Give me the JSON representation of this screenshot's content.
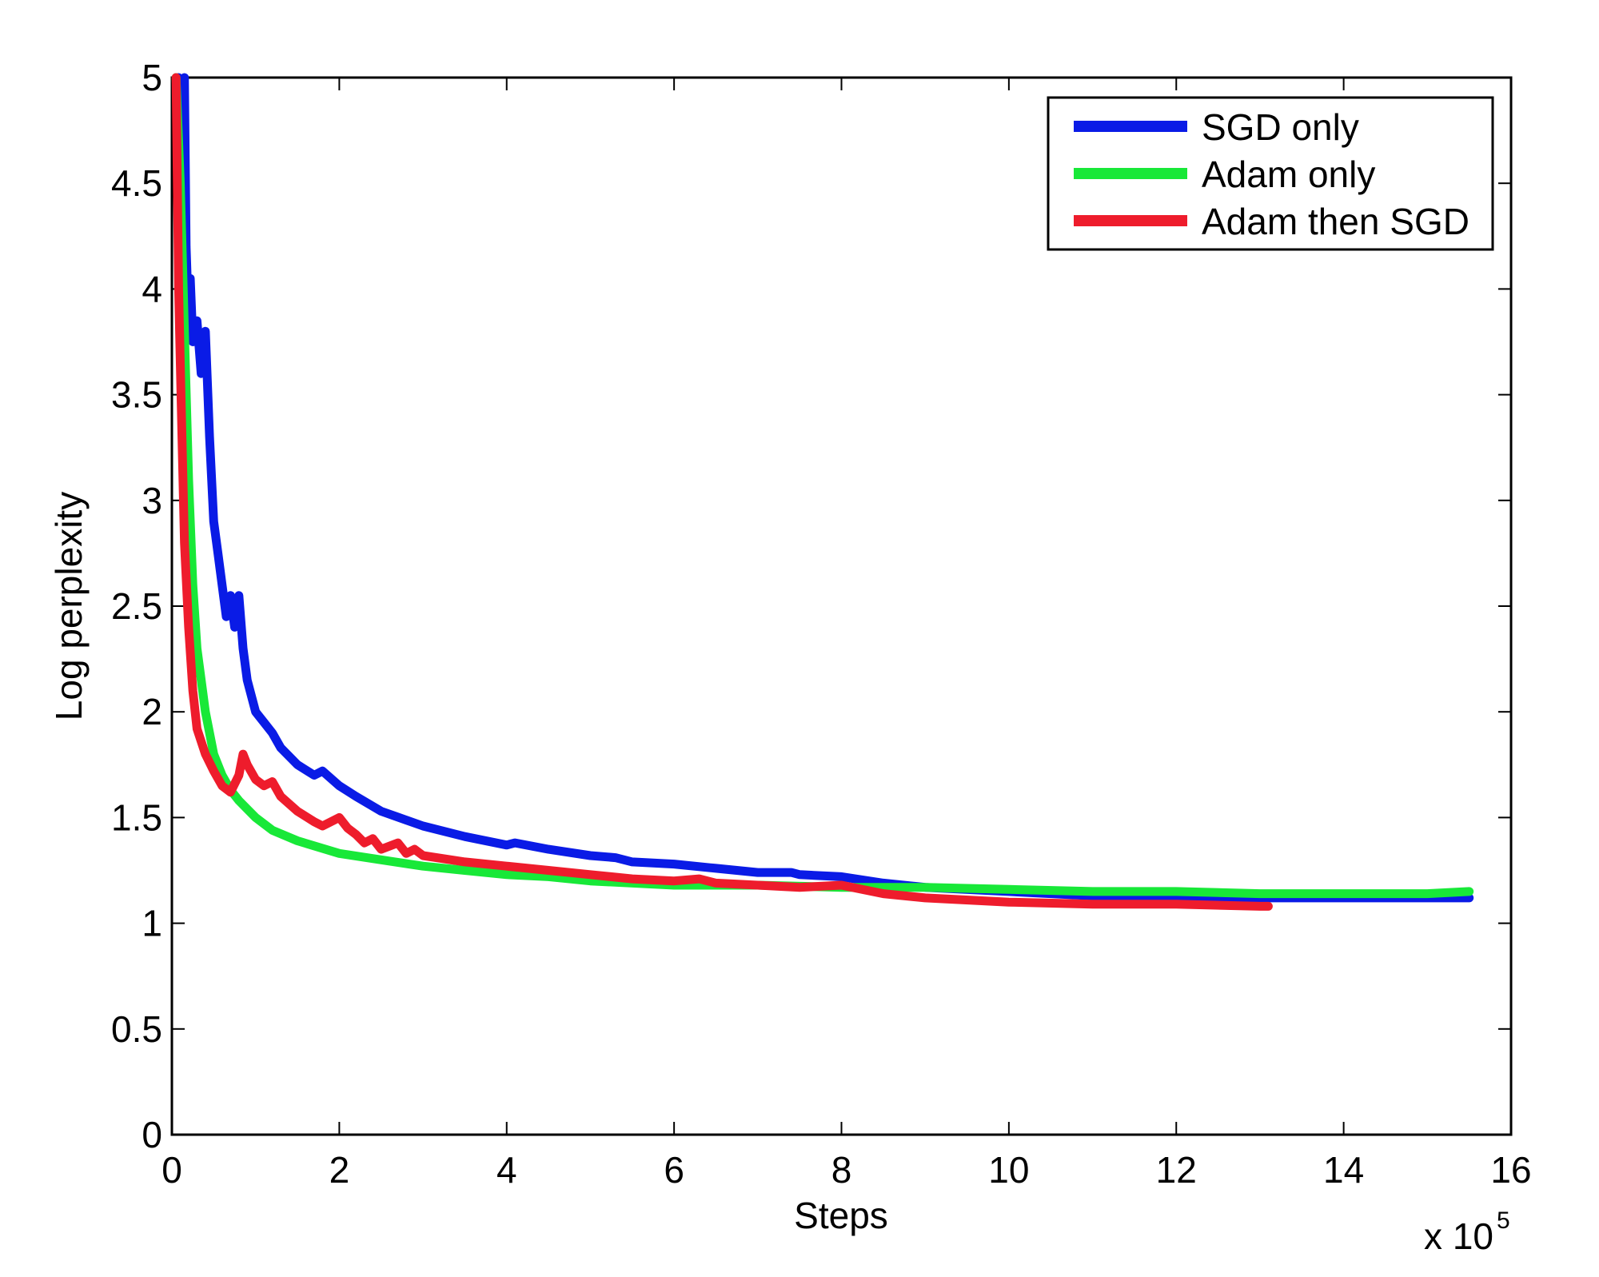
{
  "chart_data": {
    "type": "line",
    "title": "",
    "xlabel": "Steps",
    "ylabel": "Log perplexity",
    "x_multiplier_base": "x 10",
    "x_multiplier_exp": "5",
    "xlim": [
      0,
      16
    ],
    "ylim": [
      0,
      5
    ],
    "xticks": [
      "0",
      "2",
      "4",
      "6",
      "8",
      "10",
      "12",
      "14",
      "16"
    ],
    "yticks": [
      "0",
      "0.5",
      "1",
      "1.5",
      "2",
      "2.5",
      "3",
      "3.5",
      "4",
      "4.5",
      "5"
    ],
    "grid": false,
    "legend_position": "top-right",
    "series": [
      {
        "name": "SGD only",
        "color": "#0a1be6",
        "x": [
          0.08,
          0.12,
          0.15,
          0.17,
          0.2,
          0.22,
          0.25,
          0.3,
          0.35,
          0.4,
          0.45,
          0.5,
          0.55,
          0.6,
          0.65,
          0.7,
          0.75,
          0.8,
          0.85,
          0.9,
          1.0,
          1.1,
          1.2,
          1.3,
          1.5,
          1.7,
          1.8,
          2.0,
          2.2,
          2.5,
          3.0,
          3.5,
          4.0,
          4.1,
          4.5,
          5.0,
          5.3,
          5.5,
          6.0,
          6.5,
          7.0,
          7.4,
          7.5,
          8.0,
          8.5,
          9.0,
          10.0,
          11.0,
          12.0,
          13.0,
          14.0,
          15.0,
          15.5
        ],
        "values": [
          5.0,
          4.6,
          5.0,
          4.2,
          3.85,
          4.05,
          3.75,
          3.85,
          3.6,
          3.8,
          3.3,
          2.9,
          2.75,
          2.6,
          2.45,
          2.55,
          2.4,
          2.55,
          2.3,
          2.15,
          2.0,
          1.95,
          1.9,
          1.83,
          1.75,
          1.7,
          1.72,
          1.65,
          1.6,
          1.53,
          1.46,
          1.41,
          1.37,
          1.38,
          1.35,
          1.32,
          1.31,
          1.29,
          1.28,
          1.26,
          1.24,
          1.24,
          1.23,
          1.22,
          1.19,
          1.17,
          1.15,
          1.13,
          1.12,
          1.12,
          1.12,
          1.12,
          1.12
        ]
      },
      {
        "name": "Adam only",
        "color": "#18e838",
        "x": [
          0.05,
          0.1,
          0.15,
          0.2,
          0.25,
          0.3,
          0.4,
          0.5,
          0.6,
          0.7,
          0.8,
          1.0,
          1.2,
          1.5,
          2.0,
          2.5,
          3.0,
          3.5,
          4.0,
          4.5,
          5.0,
          6.0,
          7.0,
          8.0,
          9.0,
          10.0,
          11.0,
          12.0,
          13.0,
          14.0,
          15.0,
          15.5
        ],
        "values": [
          5.0,
          4.5,
          3.8,
          3.1,
          2.6,
          2.3,
          2.0,
          1.8,
          1.7,
          1.63,
          1.58,
          1.5,
          1.44,
          1.39,
          1.33,
          1.3,
          1.27,
          1.25,
          1.23,
          1.22,
          1.2,
          1.18,
          1.18,
          1.17,
          1.17,
          1.16,
          1.15,
          1.15,
          1.14,
          1.14,
          1.14,
          1.15
        ]
      },
      {
        "name": "Adam then SGD",
        "color": "#ee1c2c",
        "x": [
          0.05,
          0.08,
          0.12,
          0.15,
          0.2,
          0.25,
          0.3,
          0.4,
          0.5,
          0.6,
          0.7,
          0.8,
          0.85,
          0.9,
          1.0,
          1.1,
          1.2,
          1.3,
          1.5,
          1.7,
          1.8,
          2.0,
          2.1,
          2.2,
          2.3,
          2.4,
          2.5,
          2.7,
          2.8,
          2.9,
          3.0,
          3.5,
          4.0,
          4.5,
          5.0,
          5.5,
          6.0,
          6.3,
          6.5,
          7.0,
          7.5,
          8.0,
          8.5,
          9.0,
          10.0,
          11.0,
          12.0,
          13.0,
          13.1
        ],
        "values": [
          5.0,
          4.0,
          3.3,
          2.8,
          2.4,
          2.1,
          1.92,
          1.8,
          1.72,
          1.65,
          1.62,
          1.7,
          1.8,
          1.75,
          1.68,
          1.65,
          1.67,
          1.6,
          1.53,
          1.48,
          1.46,
          1.5,
          1.45,
          1.42,
          1.38,
          1.4,
          1.35,
          1.38,
          1.33,
          1.35,
          1.32,
          1.29,
          1.27,
          1.25,
          1.23,
          1.21,
          1.2,
          1.21,
          1.19,
          1.18,
          1.17,
          1.18,
          1.14,
          1.12,
          1.1,
          1.09,
          1.09,
          1.08,
          1.08
        ]
      }
    ]
  }
}
